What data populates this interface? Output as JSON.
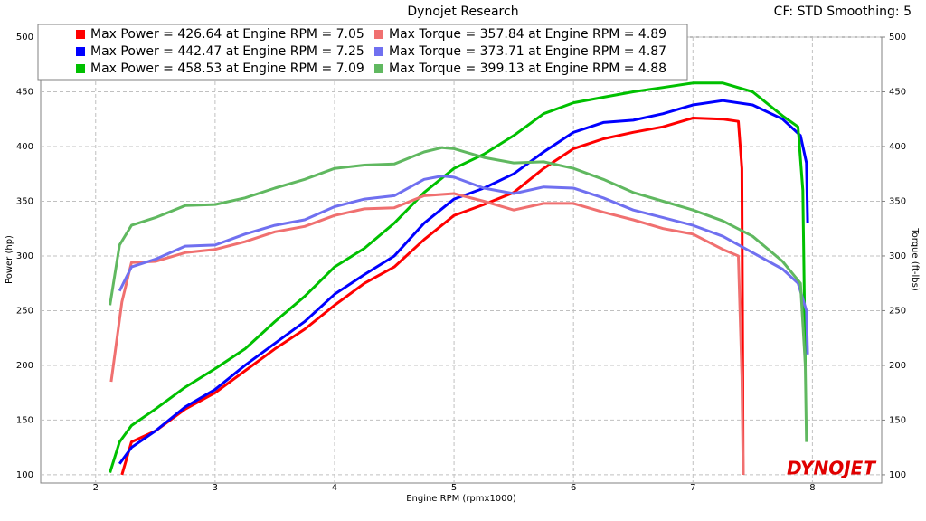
{
  "chart_data": {
    "type": "line",
    "title": "Dynojet Research",
    "header_right": "CF: STD Smoothing: 5",
    "logo": "DYNOJET",
    "xlabel": "Engine RPM (rpmx1000)",
    "ylabel": "Power (hp)",
    "y2label": "Torque (ft-lbs)",
    "xlim": [
      1.54,
      8.58
    ],
    "xticks": [
      2,
      3,
      4,
      5,
      6,
      7,
      8
    ],
    "ylim": [
      92.5,
      500
    ],
    "yticks": [
      100,
      150,
      200,
      250,
      300,
      350,
      400,
      450,
      500
    ],
    "y2lim": [
      92.5,
      500
    ],
    "y2ticks": [
      100,
      150,
      200,
      250,
      300,
      350,
      400,
      450,
      500
    ],
    "grid": true,
    "series": [
      {
        "name": "Max Power = 426.64 at Engine RPM = 7.05",
        "color": "#ff0000",
        "x": [
          2.22,
          2.3,
          2.5,
          2.75,
          3.0,
          3.25,
          3.5,
          3.75,
          4.0,
          4.25,
          4.5,
          4.75,
          5.0,
          5.25,
          5.5,
          5.75,
          6.0,
          6.25,
          6.5,
          6.75,
          7.0,
          7.25,
          7.38,
          7.41,
          7.42
        ],
        "values": [
          100,
          130,
          140,
          160,
          175,
          195,
          215,
          233,
          255,
          275,
          290,
          315,
          337,
          347,
          358,
          380,
          398,
          407,
          413,
          418,
          426,
          425,
          423,
          380,
          100
        ]
      },
      {
        "name": "Max Power = 442.47 at Engine RPM = 7.25",
        "color": "#0000ff",
        "x": [
          2.2,
          2.3,
          2.5,
          2.75,
          3.0,
          3.25,
          3.5,
          3.75,
          4.0,
          4.25,
          4.5,
          4.75,
          5.0,
          5.25,
          5.5,
          5.75,
          6.0,
          6.25,
          6.5,
          6.75,
          7.0,
          7.25,
          7.5,
          7.75,
          7.9,
          7.95,
          7.96
        ],
        "values": [
          110,
          125,
          140,
          162,
          178,
          200,
          220,
          240,
          265,
          283,
          300,
          330,
          352,
          362,
          375,
          395,
          413,
          422,
          424,
          430,
          438,
          442,
          438,
          425,
          410,
          385,
          330
        ]
      },
      {
        "name": "Max Power = 458.53 at Engine RPM = 7.09",
        "color": "#00c000",
        "x": [
          2.12,
          2.2,
          2.3,
          2.5,
          2.75,
          3.0,
          3.25,
          3.5,
          3.75,
          4.0,
          4.25,
          4.5,
          4.75,
          5.0,
          5.25,
          5.5,
          5.75,
          6.0,
          6.25,
          6.5,
          6.75,
          7.0,
          7.25,
          7.5,
          7.75,
          7.88,
          7.92,
          7.94
        ],
        "values": [
          102,
          130,
          145,
          160,
          180,
          197,
          215,
          240,
          263,
          290,
          307,
          330,
          358,
          380,
          393,
          410,
          430,
          440,
          445,
          450,
          454,
          458,
          458,
          450,
          428,
          418,
          360,
          200
        ]
      },
      {
        "name": "Max Torque = 357.84 at Engine RPM = 4.89",
        "color": "#f07070",
        "axis": "y2",
        "x": [
          2.13,
          2.22,
          2.3,
          2.5,
          2.75,
          3.0,
          3.25,
          3.5,
          3.75,
          4.0,
          4.25,
          4.5,
          4.75,
          5.0,
          5.25,
          5.5,
          5.75,
          6.0,
          6.25,
          6.5,
          6.75,
          7.0,
          7.25,
          7.38,
          7.41,
          7.42
        ],
        "values": [
          185,
          258,
          294,
          295,
          303,
          306,
          313,
          322,
          327,
          337,
          343,
          344,
          355,
          357,
          350,
          342,
          348,
          348,
          340,
          333,
          325,
          320,
          306,
          300,
          190,
          100
        ]
      },
      {
        "name": "Max Torque = 373.71 at Engine RPM = 4.87",
        "color": "#7070f0",
        "axis": "y2",
        "x": [
          2.2,
          2.3,
          2.5,
          2.75,
          3.0,
          3.25,
          3.5,
          3.75,
          4.0,
          4.25,
          4.5,
          4.75,
          4.9,
          5.0,
          5.25,
          5.5,
          5.75,
          6.0,
          6.25,
          6.5,
          6.75,
          7.0,
          7.25,
          7.5,
          7.75,
          7.88,
          7.95,
          7.96
        ],
        "values": [
          268,
          290,
          297,
          309,
          310,
          320,
          328,
          333,
          345,
          352,
          355,
          370,
          373,
          372,
          362,
          357,
          363,
          362,
          353,
          342,
          335,
          328,
          318,
          303,
          288,
          275,
          250,
          210
        ]
      },
      {
        "name": "Max Torque = 399.13 at Engine RPM = 4.88",
        "color": "#60b860",
        "axis": "y2",
        "x": [
          2.12,
          2.2,
          2.3,
          2.5,
          2.75,
          3.0,
          3.25,
          3.5,
          3.75,
          4.0,
          4.25,
          4.5,
          4.75,
          4.9,
          5.0,
          5.25,
          5.5,
          5.75,
          6.0,
          6.25,
          6.5,
          6.75,
          7.0,
          7.25,
          7.5,
          7.75,
          7.9,
          7.94,
          7.95
        ],
        "values": [
          255,
          310,
          328,
          335,
          346,
          347,
          353,
          362,
          370,
          380,
          383,
          384,
          395,
          399,
          398,
          390,
          385,
          386,
          380,
          370,
          358,
          350,
          342,
          332,
          318,
          295,
          275,
          200,
          130
        ]
      }
    ]
  }
}
